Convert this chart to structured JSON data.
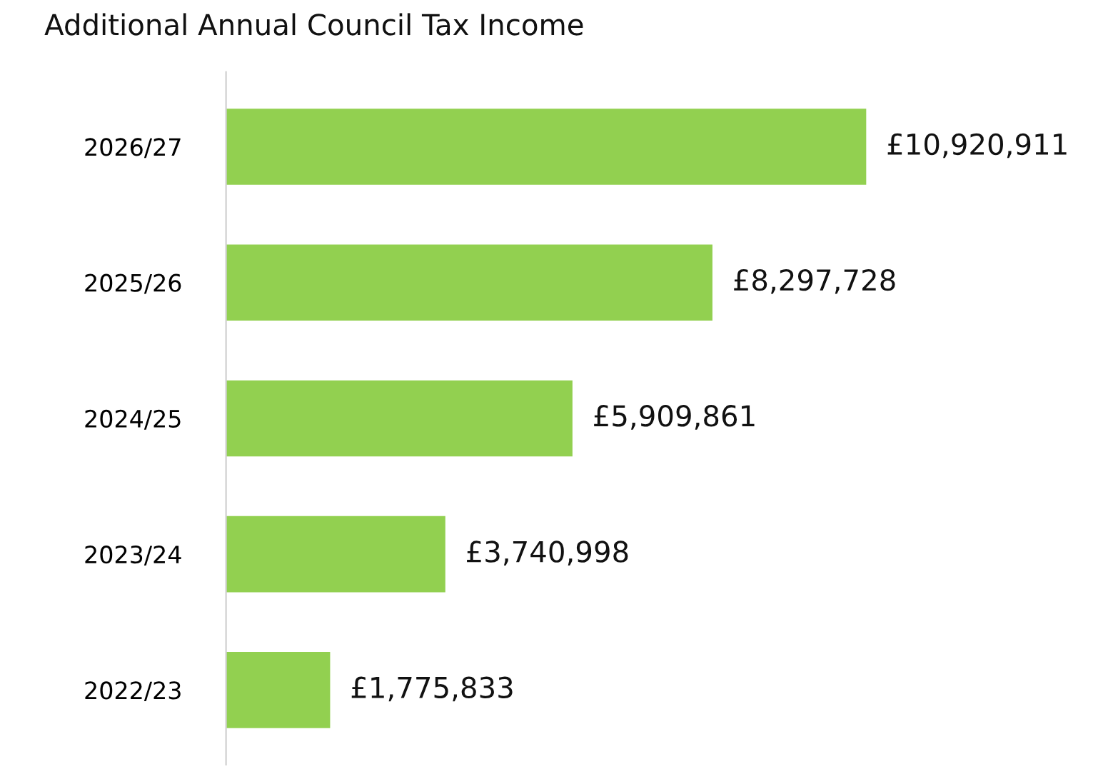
{
  "chart_data": {
    "type": "bar",
    "orientation": "horizontal",
    "title": "Additional Annual Council Tax Income",
    "categories": [
      "2026/27",
      "2025/26",
      "2024/25",
      "2023/24",
      "2022/23"
    ],
    "values": [
      10920911,
      8297728,
      5909861,
      3740998,
      1775833
    ],
    "value_labels": [
      "£10,920,911",
      "£8,297,728",
      "£5,909,861",
      "£3,740,998",
      "£1,775,833"
    ],
    "color": "#92d050",
    "grid": false,
    "legend": false
  }
}
